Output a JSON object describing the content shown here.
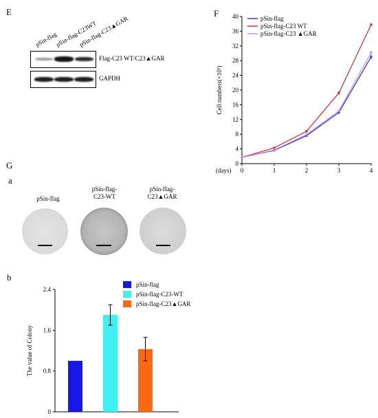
{
  "panels": {
    "E": {
      "letter": "E",
      "lanes": [
        "pSin-flag",
        "pSin-flag-C23WT",
        "pSin-flag-C23▲GAR"
      ],
      "blots": [
        {
          "label": "Flag-C23 WT/C23▲GAR"
        },
        {
          "label": "GAPDH"
        }
      ]
    },
    "F": {
      "letter": "F",
      "ylabel": "Cell numbers(×10³)",
      "xlabel": "(days)"
    },
    "G": {
      "letter": "G",
      "a": {
        "letter": "a",
        "dishes": [
          {
            "label": "pSin-flag"
          },
          {
            "label": "pSin-flag-\nC23-WT"
          },
          {
            "label": "pSin-flag-\nC23▲GAR"
          }
        ]
      },
      "b": {
        "letter": "b",
        "ylabel": "The value  of Colony"
      }
    }
  },
  "chart_data": [
    {
      "type": "line",
      "panel": "F",
      "title": "",
      "xlabel": "(days)",
      "ylabel": "Cell numbers(×10³)",
      "x": [
        0,
        1,
        2,
        3,
        4
      ],
      "xlim": [
        0,
        4
      ],
      "ylim": [
        0,
        40
      ],
      "xticks": [
        0,
        1,
        2,
        3,
        4
      ],
      "yticks": [
        0,
        4,
        8,
        12,
        16,
        20,
        24,
        28,
        32,
        36,
        40
      ],
      "grid": false,
      "legend": "top-left",
      "series": [
        {
          "name": "pSin-flag",
          "color": "#2a2ad8",
          "values": [
            1.7,
            3.6,
            7.6,
            13.9,
            29.0
          ],
          "err": [
            0.1,
            0.3,
            0.3,
            0.4,
            0.6
          ]
        },
        {
          "name": "pSin-flag-C23 WT",
          "color": "#e0202a",
          "values": [
            1.7,
            4.3,
            8.8,
            19.2,
            37.8
          ],
          "err": [
            0.1,
            0.3,
            0.4,
            0.5,
            0.4
          ]
        },
        {
          "name": "pSin-flag-C23 ▲GAR",
          "color": "#c08ce0",
          "values": [
            1.7,
            3.7,
            7.9,
            14.3,
            30.2
          ],
          "err": [
            0.1,
            0.3,
            0.3,
            0.4,
            0.5
          ]
        }
      ]
    },
    {
      "type": "bar",
      "panel": "G-b",
      "title": "",
      "xlabel": "",
      "ylabel": "The value  of Colony",
      "categories": [
        "pSin-flag",
        "pSin-flag-C23-WT",
        "pSin-flag-C23▲GAR"
      ],
      "values": [
        1.0,
        1.9,
        1.23
      ],
      "err": [
        0,
        0.2,
        0.23
      ],
      "colors": [
        "#1717e8",
        "#3ff0f0",
        "#ff6a10"
      ],
      "ylim": [
        0,
        2.4
      ],
      "yticks": [
        0,
        0.8,
        1.6,
        2.4
      ],
      "grid": false,
      "legend": "top-right"
    }
  ]
}
